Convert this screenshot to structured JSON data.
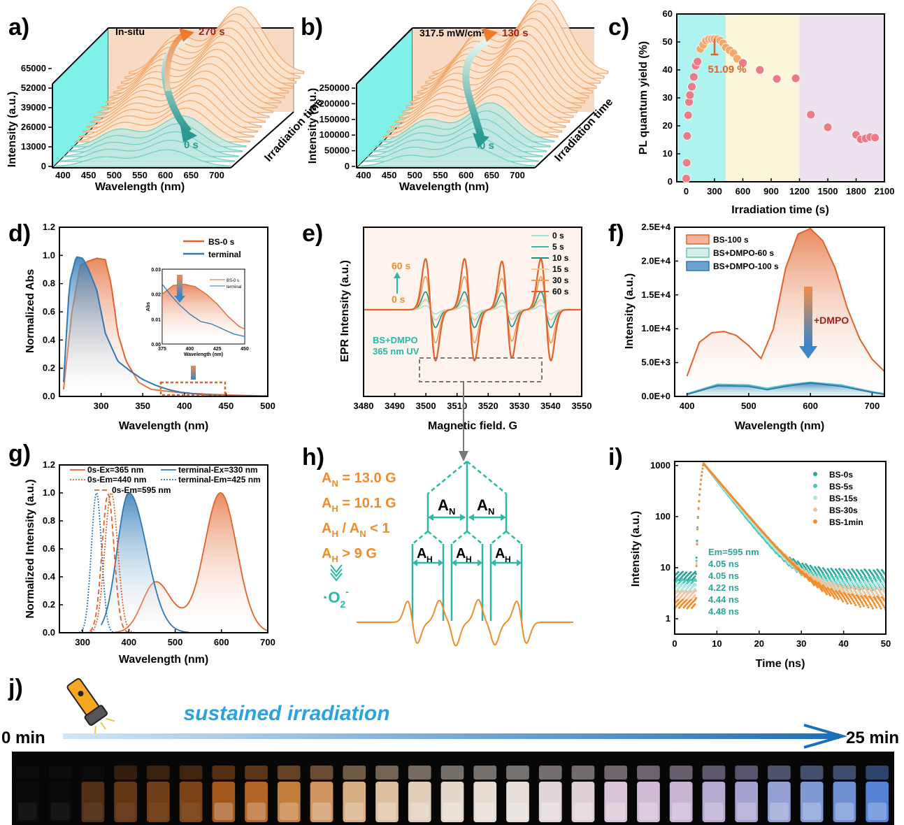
{
  "colors": {
    "orange": "#e2622a",
    "blue": "#2f78b4",
    "teal": "#2bb8a6",
    "amber": "#f08c2a",
    "cyan": "#7ff1e8",
    "peach": "#f7d9c4",
    "darkred": "#a32020"
  },
  "panel_labels": {
    "a": "a)",
    "b": "b)",
    "c": "c)",
    "d": "d)",
    "e": "e)",
    "f": "f)",
    "g": "g)",
    "h": "h)",
    "i": "i)",
    "j": "j)"
  },
  "panel_a": {
    "ylabel": "Intensity (a.u.)",
    "xlabel": "Wavelength (nm)",
    "zlabel": "Irradiation time",
    "annotation": "In-situ",
    "start": "0 s",
    "end": "270 s",
    "yticks": [
      "0",
      "13000",
      "26000",
      "39000",
      "52000",
      "65000"
    ],
    "xticks": [
      "400",
      "450",
      "500",
      "550",
      "600",
      "650",
      "700"
    ]
  },
  "panel_b": {
    "ylabel": "Intensity (a.u.)",
    "xlabel": "Wavelength (nm)",
    "zlabel": "Irradiation time",
    "annotation": "317.5 mW/cm²",
    "start": "0 s",
    "end": "130 s",
    "yticks": [
      "0",
      "50000",
      "100000",
      "150000",
      "200000",
      "250000"
    ],
    "xticks": [
      "400",
      "450",
      "500",
      "550",
      "600",
      "650",
      "700"
    ]
  },
  "chart_data": [
    {
      "panel": "c",
      "type": "scatter",
      "xlabel": "Irradiation time (s)",
      "ylabel": "PL quantum yield (%)",
      "xlim": [
        -100,
        2100
      ],
      "ylim": [
        0,
        60
      ],
      "xticks": [
        0,
        300,
        600,
        900,
        1200,
        1500,
        1800,
        2100
      ],
      "yticks": [
        0,
        10,
        20,
        30,
        40,
        50,
        60
      ],
      "annotation": "51.09 %",
      "x": [
        0,
        5,
        10,
        20,
        30,
        40,
        60,
        80,
        100,
        120,
        150,
        180,
        210,
        240,
        270,
        300,
        330,
        360,
        390,
        420,
        460,
        500,
        540,
        600,
        780,
        960,
        1160,
        1320,
        1500,
        1800,
        1850,
        1900,
        1950,
        2000
      ],
      "y": [
        1.2,
        6.8,
        16.4,
        23.8,
        28.5,
        31,
        34,
        37.5,
        41.5,
        43,
        47.5,
        49,
        50.5,
        51,
        51,
        51.09,
        51,
        50.5,
        49.5,
        48,
        47,
        46,
        44,
        42.5,
        40,
        36.8,
        37,
        24,
        19.5,
        16.8,
        15.2,
        15.5,
        16,
        15.8
      ]
    },
    {
      "panel": "d",
      "type": "line",
      "xlabel": "Wavelength (nm)",
      "ylabel": "Normalized Abs",
      "xlim": [
        250,
        500
      ],
      "ylim": [
        0,
        1.2
      ],
      "xticks": [
        300,
        350,
        400,
        450,
        500
      ],
      "yticks": [
        "0.0",
        "0.2",
        "0.4",
        "0.6",
        "0.8",
        "1.0",
        "1.2"
      ],
      "series": [
        {
          "name": "BS-0 s",
          "x": [
            255,
            265,
            275,
            285,
            295,
            305,
            312,
            320,
            330,
            345,
            360,
            375,
            390,
            410,
            430,
            450,
            500
          ],
          "y": [
            0.05,
            0.6,
            0.93,
            0.96,
            0.98,
            0.97,
            0.8,
            0.45,
            0.25,
            0.1,
            0.05,
            0.04,
            0.03,
            0.02,
            0.015,
            0.01,
            0.003
          ]
        },
        {
          "name": "terminal",
          "x": [
            255,
            262,
            270,
            278,
            285,
            295,
            305,
            320,
            335,
            350,
            365,
            380,
            395,
            410,
            430,
            450,
            500
          ],
          "y": [
            0.1,
            0.8,
            0.99,
            0.98,
            0.9,
            0.75,
            0.45,
            0.25,
            0.18,
            0.12,
            0.08,
            0.05,
            0.03,
            0.02,
            0.01,
            0.005,
            0.002
          ]
        }
      ],
      "inset": {
        "ylabel": "Abs",
        "xlabel": "Wavelength (nm)",
        "xticks": [
          "375",
          "400",
          "425",
          "450"
        ],
        "yticks": [
          "0.00",
          "0.01",
          "0.02",
          "0.03"
        ]
      }
    },
    {
      "panel": "e",
      "type": "line",
      "xlabel": "Magnetic field. G",
      "ylabel": "EPR Intensity (a.u.)",
      "xlim": [
        3480,
        3550
      ],
      "xticks": [
        3480,
        3490,
        3500,
        3510,
        3520,
        3530,
        3540,
        3550
      ],
      "annotation": "BS+DMPO\n365 nm UV",
      "arrow_top": "60 s",
      "arrow_bottom": "0 s",
      "series": [
        {
          "name": "0 s"
        },
        {
          "name": "5 s"
        },
        {
          "name": "10 s"
        },
        {
          "name": "15 s"
        },
        {
          "name": "30 s"
        },
        {
          "name": "60 s"
        }
      ],
      "amplitudes": [
        0.08,
        0.2,
        0.35,
        0.2,
        0.65,
        1.0
      ]
    },
    {
      "panel": "f",
      "type": "area",
      "xlabel": "Wavelength (nm)",
      "ylabel": "Intensity (a.u.)",
      "xlim": [
        380,
        720
      ],
      "ylim": [
        0,
        25000
      ],
      "xticks": [
        400,
        500,
        600,
        700
      ],
      "yticks": [
        "0.0E+0",
        "5.0E+3",
        "1.0E+4",
        "1.5E+4",
        "2.0E+4",
        "2.5E+4"
      ],
      "annotation": "+DMPO",
      "series": [
        {
          "name": "BS-100 s",
          "x": [
            400,
            420,
            440,
            460,
            480,
            500,
            520,
            540,
            560,
            580,
            600,
            620,
            640,
            660,
            680,
            700,
            720
          ],
          "y": [
            3000,
            8000,
            9400,
            9600,
            9000,
            7500,
            5600,
            10000,
            19000,
            24000,
            24800,
            23000,
            19000,
            13000,
            8500,
            5500,
            3700
          ]
        },
        {
          "name": "BS+DMPO-60 s",
          "x": [
            400,
            450,
            500,
            530,
            560,
            600,
            650,
            700,
            720
          ],
          "y": [
            400,
            1800,
            1700,
            1200,
            1700,
            2100,
            1700,
            700,
            400
          ]
        },
        {
          "name": "BS+DMPO-100 s",
          "x": [
            400,
            450,
            500,
            530,
            560,
            600,
            650,
            700,
            720
          ],
          "y": [
            300,
            1600,
            1500,
            1000,
            1500,
            2000,
            1500,
            600,
            300
          ]
        }
      ]
    },
    {
      "panel": "g",
      "type": "line",
      "xlabel": "Wavelength (nm)",
      "ylabel": "Normalized Intensity (a.u.)",
      "xlim": [
        250,
        700
      ],
      "ylim": [
        0,
        1.2
      ],
      "xticks": [
        300,
        400,
        500,
        600,
        700
      ],
      "yticks": [
        "0.0",
        "0.2",
        "0.4",
        "0.6",
        "0.8",
        "1.0",
        "1.2"
      ],
      "series": [
        {
          "name": "0s-Ex=365 nm"
        },
        {
          "name": "terminal-Ex=330 nm"
        },
        {
          "name": "0s-Em=440 nm"
        },
        {
          "name": "terminal-Em=425 nm"
        },
        {
          "name": "0s-Em=595 nm"
        }
      ]
    },
    {
      "panel": "i",
      "type": "scatter",
      "xlabel": "Time (ns)",
      "ylabel": "Intensity (a.u.)",
      "xlim": [
        0,
        50
      ],
      "yscale": "log",
      "ylim": [
        0.5,
        1200
      ],
      "xticks": [
        0,
        10,
        20,
        30,
        40,
        50
      ],
      "yticks": [
        "1",
        "10",
        "100",
        "1000"
      ],
      "series": [
        {
          "name": "BS-0s",
          "lifetime": "4.05 ns"
        },
        {
          "name": "BS-5s",
          "lifetime": "4.05 ns"
        },
        {
          "name": "BS-15s",
          "lifetime": "4.22 ns"
        },
        {
          "name": "BS-30s",
          "lifetime": "4.44 ns"
        },
        {
          "name": "BS-1min",
          "lifetime": "4.48 ns"
        }
      ],
      "annotation": "Em=595 nm"
    }
  ],
  "panel_h": {
    "lines": [
      "A",
      "N",
      " = 13.0 G"
    ],
    "an": "A",
    "an_sub": "N",
    "an_val": " = 13.0 G",
    "ah": "A",
    "ah_sub": "H",
    "ah_val": " = 10.1 G",
    "ratio": "A",
    "ratio_h": "H",
    "ratio_mid": " / A",
    "ratio_n": "N",
    "ratio_end": " < 1",
    "ahg": " > 9 G",
    "radical": "·O",
    "radical_sub": "2",
    "radical_sup": "-"
  },
  "panel_j": {
    "title": "sustained irradiation",
    "start": "0 min",
    "end": "25 min",
    "vial_count": 27
  }
}
